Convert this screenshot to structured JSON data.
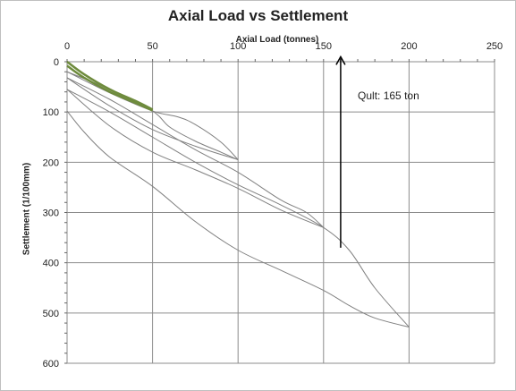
{
  "chart_data": {
    "type": "line",
    "title": "Axial Load vs Settlement",
    "xlabel": "Axial Load (tonnes)",
    "ylabel": "Settlement (1/100mm)",
    "xlim": [
      0,
      250
    ],
    "ylim": [
      0,
      600
    ],
    "x_ticks": [
      "0",
      "50",
      "100",
      "150",
      "200",
      "250"
    ],
    "y_ticks": [
      "0",
      "100",
      "200",
      "300",
      "400",
      "500",
      "600"
    ],
    "x_axis_position": "top",
    "y_axis_inverted": true,
    "grid": true,
    "legend": "none",
    "series": [
      {
        "color": "#808080",
        "x": [
          0,
          10,
          25,
          50,
          75,
          100,
          125,
          150,
          165,
          180,
          200
        ],
        "y": [
          98,
          140,
          190,
          248,
          318,
          375,
          415,
          455,
          485,
          510,
          528
        ]
      },
      {
        "color": "#808080",
        "x": [
          200,
          180,
          165,
          150,
          125,
          100,
          75,
          50,
          25,
          0
        ],
        "y": [
          528,
          450,
          375,
          330,
          285,
          245,
          200,
          150,
          100,
          55
        ]
      },
      {
        "color": "#808080",
        "x": [
          0,
          25,
          50,
          75,
          100,
          125,
          150
        ],
        "y": [
          55,
          128,
          180,
          215,
          252,
          295,
          330
        ]
      },
      {
        "color": "#808080",
        "x": [
          150,
          140,
          125,
          100,
          75,
          50,
          25,
          0
        ],
        "y": [
          330,
          300,
          275,
          220,
          175,
          125,
          75,
          32
        ]
      },
      {
        "color": "#808080",
        "x": [
          0,
          25,
          50,
          75,
          100
        ],
        "y": [
          32,
          88,
          135,
          168,
          195
        ]
      },
      {
        "color": "#808080",
        "x": [
          100,
          90,
          75,
          60,
          50,
          25,
          0
        ],
        "y": [
          195,
          180,
          158,
          130,
          98,
          55,
          20
        ]
      },
      {
        "color": "#808080",
        "x": [
          0,
          25,
          50,
          65,
          75,
          90,
          100
        ],
        "y": [
          20,
          62,
          98,
          110,
          125,
          160,
          195
        ]
      },
      {
        "color": "#6e8b3d",
        "width": 2.5,
        "x": [
          0,
          10,
          25,
          40,
          50
        ],
        "y": [
          0,
          25,
          55,
          78,
          95
        ]
      },
      {
        "color": "#6e8b3d",
        "width": 2.5,
        "x": [
          0,
          10,
          25,
          40,
          50
        ],
        "y": [
          8,
          32,
          60,
          82,
          97
        ]
      }
    ],
    "annotations": [
      {
        "type": "arrow",
        "x": 160,
        "y_from": 370,
        "y_to": -10
      },
      {
        "type": "text",
        "text": "Qult: 165 ton",
        "x": 170,
        "y": 68
      }
    ]
  }
}
